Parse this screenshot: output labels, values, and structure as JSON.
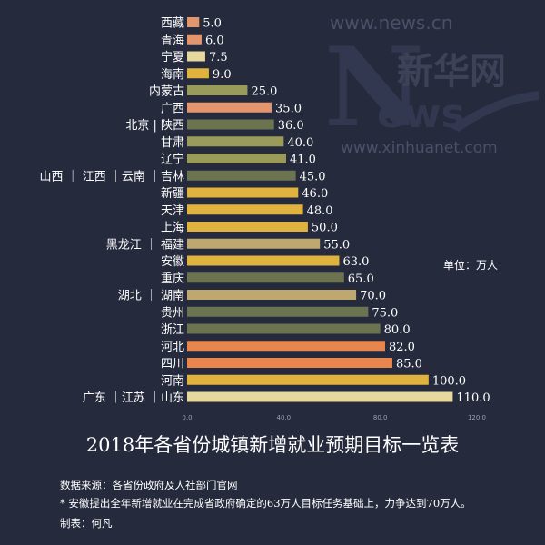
{
  "title": "2018年各省份城镇新增就业预期目标一览表",
  "unit_label": "单位：万人",
  "watermark": {
    "url_top": "www.news.cn",
    "brand": "新华网",
    "url_bottom": "www.xinhuanet.com"
  },
  "footnotes": {
    "source": "数据来源：各省份政府及人社部门官网",
    "note": "* 安徽提出全年新增就业在完成省政府确定的63万人目标任务基础上，力争达到70万人。",
    "credit": "制表：何凡"
  },
  "colors": {
    "background": "#252a3c",
    "salmon": "#e3956e",
    "cream": "#e7d8a0",
    "gold": "#e0b23e",
    "olive": "#9a9a5a",
    "dark_olive": "#6b7350",
    "tan": "#bfa770",
    "orange": "#e8864e"
  },
  "chart_data": {
    "type": "bar",
    "orientation": "horizontal",
    "title": "2018年各省份城镇新增就业预期目标一览表",
    "unit": "单位：万人",
    "xlim": [
      0,
      120
    ],
    "x_ticks": [
      "0.0",
      "40.0",
      "80.0",
      "120.0"
    ],
    "grid": false,
    "categories": [
      "西藏",
      "青海",
      "宁夏",
      "海南",
      "内蒙古",
      "广西",
      "北京 | 陕西",
      "甘肃",
      "辽宁",
      "山西 ｜ 江西 ｜云南 ｜吉林",
      "新疆",
      "天津",
      "上海",
      "黑龙江 ｜ 福建",
      "安徽",
      "重庆",
      "湖北 ｜ 湖南",
      "贵州",
      "浙江",
      "河北",
      "四川",
      "河南",
      "广东 ｜江苏 ｜山东"
    ],
    "values": [
      5.0,
      6.0,
      7.5,
      9.0,
      25.0,
      35.0,
      36.0,
      40.0,
      41.0,
      45.0,
      46.0,
      48.0,
      50.0,
      55.0,
      63.0,
      65.0,
      70.0,
      75.0,
      80.0,
      82.0,
      85.0,
      100.0,
      110.0
    ],
    "labels": [
      "5.0",
      "6.0",
      "7.5",
      "9.0",
      "25.0",
      "35.0",
      "36.0",
      "40.0",
      "41.0",
      "45.0",
      "46.0",
      "48.0",
      "50.0",
      "55.0",
      "63.0",
      "65.0",
      "70.0",
      "75.0",
      "80.0",
      "82.0",
      "85.0",
      "100.0",
      "110.0"
    ],
    "bar_colors": [
      "#e3956e",
      "#e3956e",
      "#e7d8a0",
      "#e0b23e",
      "#9a9a5a",
      "#e3956e",
      "#6b7350",
      "#9a9a5a",
      "#9a9a5a",
      "#6b7350",
      "#e0b23e",
      "#e0b23e",
      "#e0b23e",
      "#bfa770",
      "#e0b23e",
      "#6b7350",
      "#bfa770",
      "#6b7350",
      "#6b7350",
      "#e8864e",
      "#e8864e",
      "#e0b23e",
      "#e7d8a0"
    ]
  }
}
